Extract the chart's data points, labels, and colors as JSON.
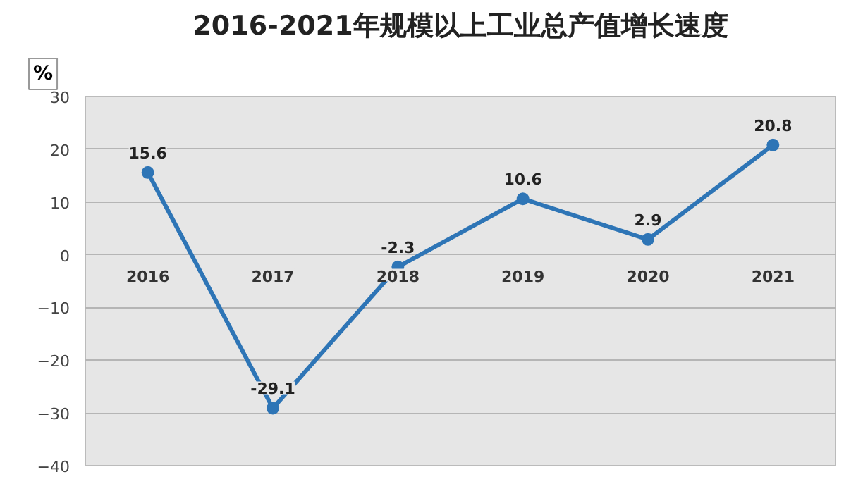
{
  "chart_data": {
    "type": "line",
    "title": "2016-2021年规模以上工业总产值增长速度",
    "ylabel": "%",
    "categories": [
      "2016",
      "2017",
      "2018",
      "2019",
      "2020",
      "2021"
    ],
    "series": [
      {
        "color": "#2e75b6",
        "values": [
          15.6,
          -29.1,
          -2.3,
          10.6,
          2.9,
          20.8
        ]
      }
    ],
    "ylim": [
      -40,
      30
    ],
    "yticks": [
      -40,
      -30,
      -20,
      -10,
      0,
      10,
      20,
      30
    ],
    "grid": "y",
    "marker": "circle",
    "line_style": "solid",
    "data_labels": true
  }
}
